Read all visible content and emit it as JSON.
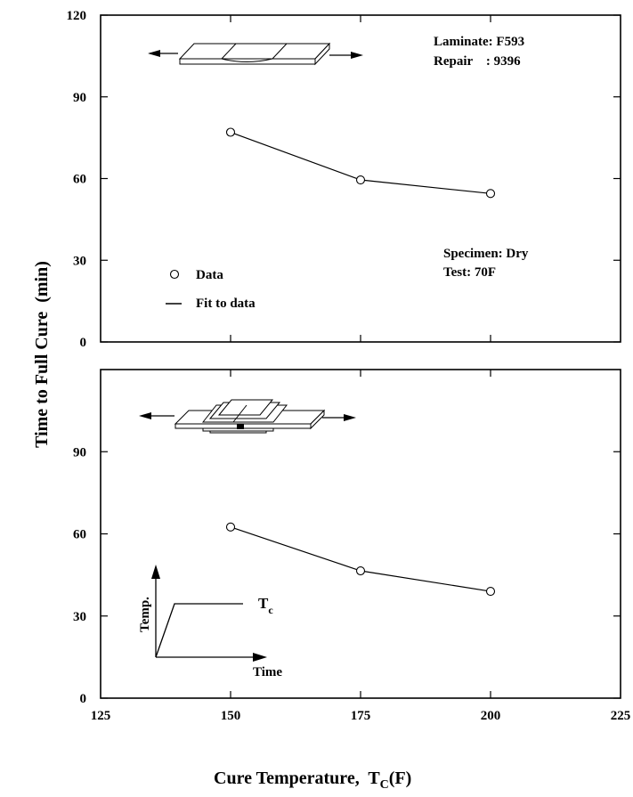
{
  "chart_data": [
    {
      "type": "line",
      "panel": "top",
      "x": [
        150,
        175,
        200
      ],
      "y": [
        77,
        59.5,
        54.5
      ],
      "xlim": [
        125,
        225
      ],
      "ylim": [
        0,
        120
      ],
      "yticks": [
        "0",
        "30",
        "60",
        "90",
        "120"
      ],
      "annotations": {
        "laminate": "Laminate: F593",
        "repair": "Repair    : 9396",
        "specimen": "Specimen: Dry",
        "test": "Test: 70F"
      },
      "legend": {
        "data_label": "Data",
        "fit_label": "Fit to data",
        "placement": "bottom-left"
      },
      "grid": false
    },
    {
      "type": "line",
      "panel": "bottom",
      "x": [
        150,
        175,
        200
      ],
      "y": [
        62.5,
        46.5,
        39
      ],
      "xlim": [
        125,
        225
      ],
      "ylim": [
        0,
        120
      ],
      "yticks": [
        "0",
        "30",
        "60",
        "90"
      ],
      "xticks": [
        "125",
        "150",
        "175",
        "200",
        "225"
      ],
      "inset": {
        "ylabel": "Temp.",
        "xlabel": "Time",
        "level_label": "T",
        "level_sub": "c"
      },
      "grid": false
    }
  ],
  "shared": {
    "ylabel": "Time to Full Cure  (min)",
    "xlabel_main": "Cure Temperature,  T",
    "xlabel_sub": "C",
    "xlabel_unit": "(F)"
  }
}
